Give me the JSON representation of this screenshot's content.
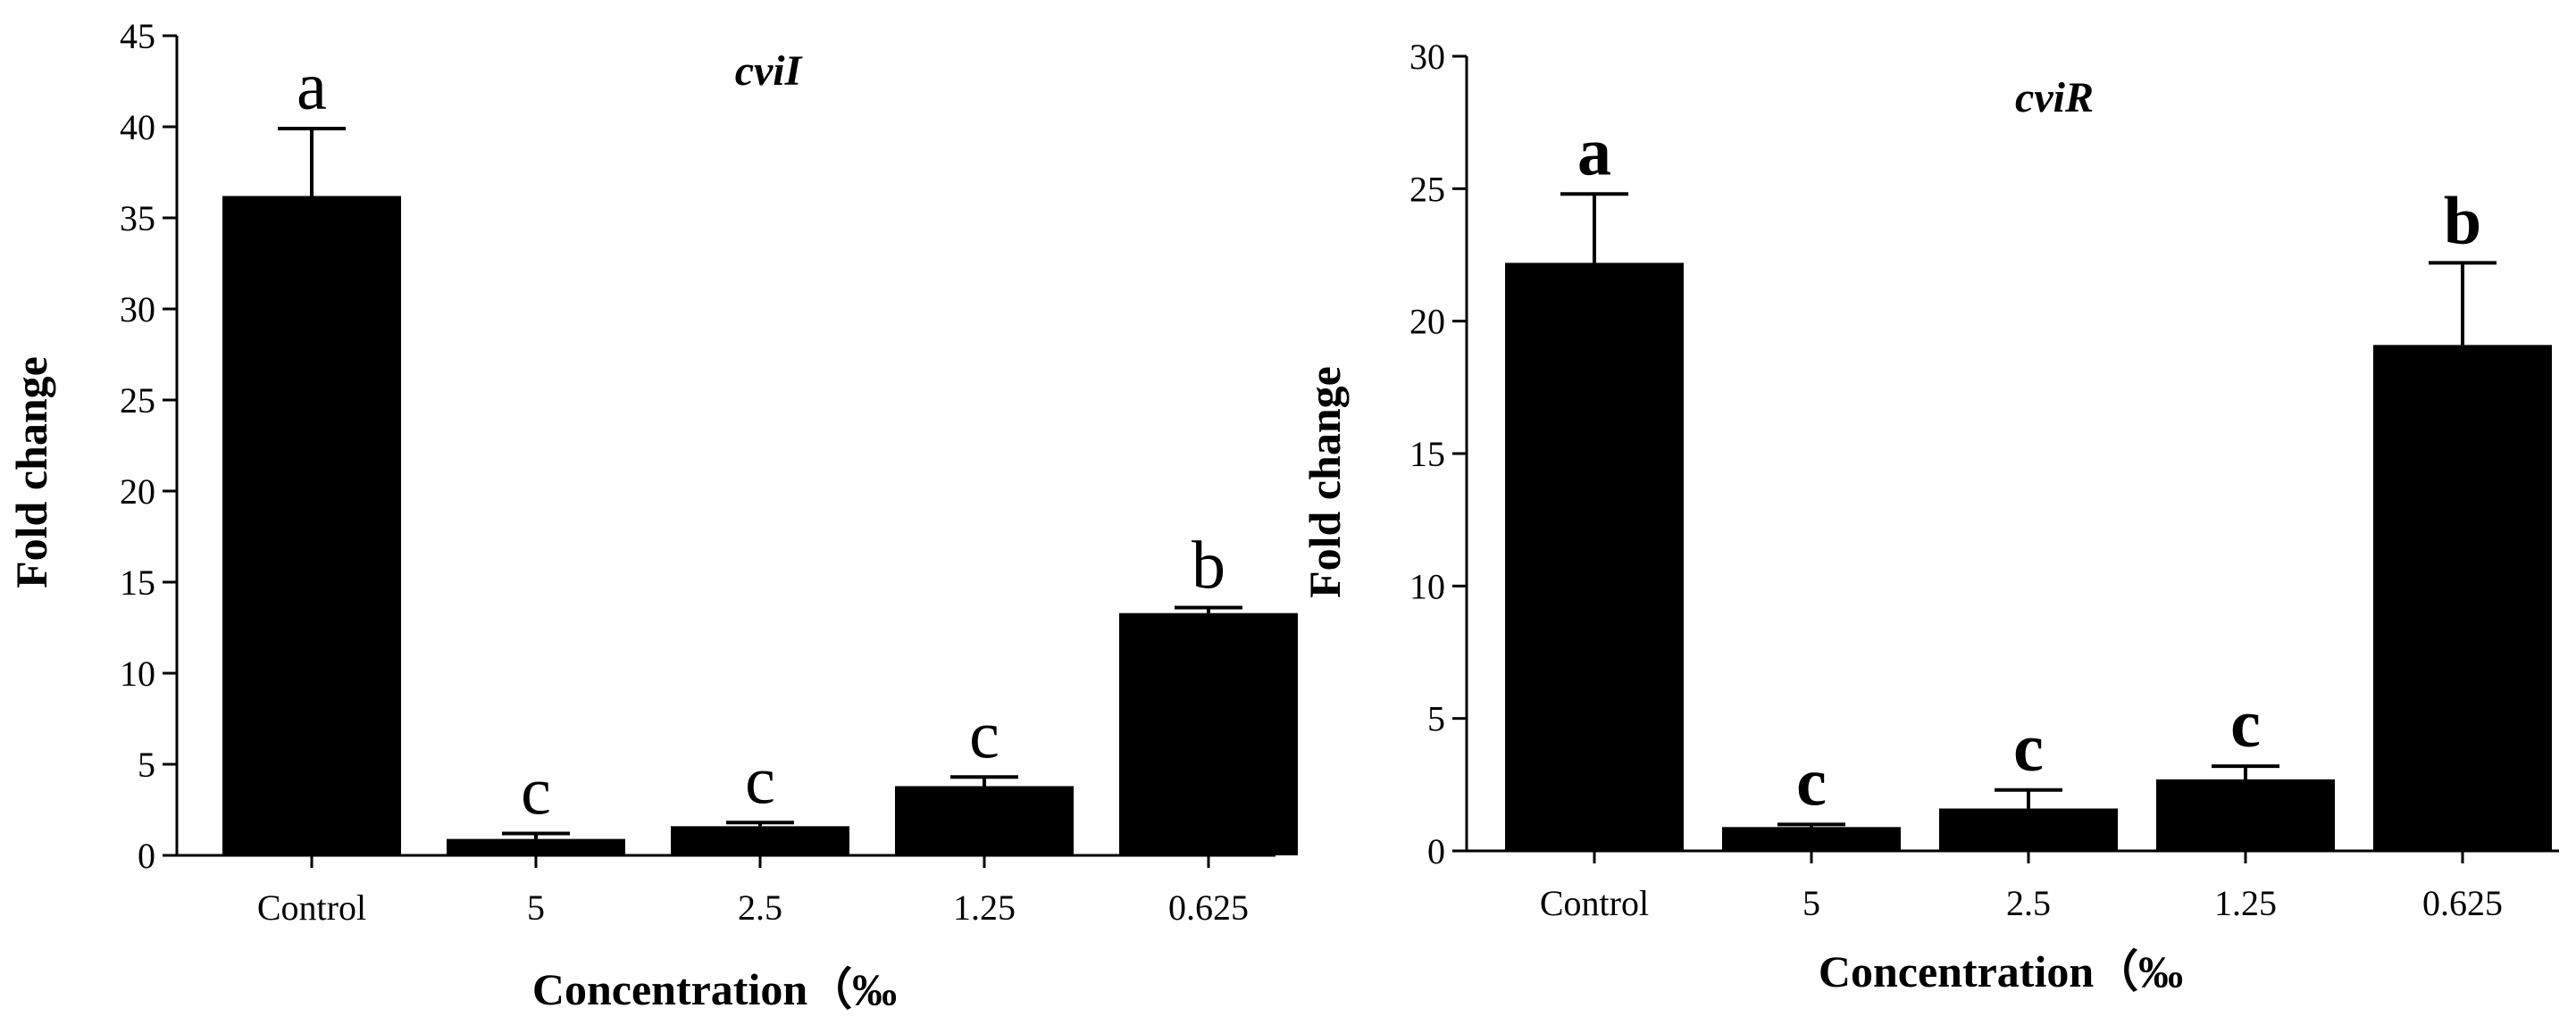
{
  "chart_data": [
    {
      "type": "bar",
      "title": "cviI",
      "xlabel": "Concentration（‰",
      "ylabel": "Fold change",
      "categories": [
        "Control",
        "5",
        "2.5",
        "1.25",
        "0.625"
      ],
      "values": [
        36.2,
        0.9,
        1.6,
        3.8,
        13.3
      ],
      "errors": [
        3.7,
        0.3,
        0.2,
        0.5,
        0.3
      ],
      "significance": [
        "a",
        "c",
        "c",
        "c",
        "b"
      ],
      "ylim": [
        0,
        45
      ],
      "yticks": [
        0,
        5,
        10,
        15,
        20,
        25,
        30,
        35,
        40,
        45
      ],
      "color": "#000000",
      "grid": false
    },
    {
      "type": "bar",
      "title": "cviR",
      "xlabel": "Concentration（‰",
      "ylabel": "Fold change",
      "categories": [
        "Control",
        "5",
        "2.5",
        "1.25",
        "0.625"
      ],
      "values": [
        22.2,
        0.9,
        1.6,
        2.7,
        19.1
      ],
      "errors": [
        2.6,
        0.1,
        0.7,
        0.5,
        3.1
      ],
      "significance": [
        "a",
        "c",
        "c",
        "c",
        "b"
      ],
      "ylim": [
        0,
        30
      ],
      "yticks": [
        0,
        5,
        10,
        15,
        20,
        25,
        30
      ],
      "color": "#000000",
      "grid": false
    }
  ]
}
